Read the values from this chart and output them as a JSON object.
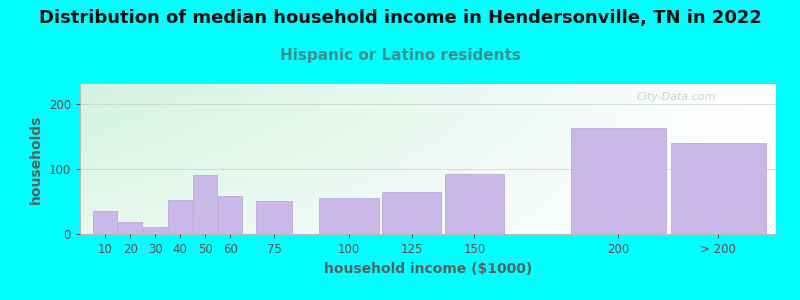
{
  "title": "Distribution of median household income in Hendersonville, TN in 2022",
  "subtitle": "Hispanic or Latino residents",
  "xlabel": "household income ($1000)",
  "ylabel": "households",
  "background_color": "#00FFFF",
  "bar_color": "#c9b8e8",
  "bar_edge_color": "#b8a0d8",
  "categories": [
    "10",
    "20",
    "30",
    "40",
    "50",
    "60",
    "75",
    "100",
    "125",
    "150",
    "200",
    "> 200"
  ],
  "values": [
    35,
    18,
    10,
    52,
    90,
    58,
    50,
    55,
    65,
    92,
    163,
    140
  ],
  "bar_positions": [
    10,
    20,
    30,
    40,
    50,
    60,
    75,
    100,
    125,
    150,
    200,
    240
  ],
  "bar_widths": [
    10,
    10,
    10,
    10,
    10,
    10,
    15,
    25,
    25,
    25,
    40,
    40
  ],
  "yticks": [
    0,
    100,
    200
  ],
  "ylim": [
    0,
    230
  ],
  "title_fontsize": 13,
  "subtitle_fontsize": 11,
  "axis_label_fontsize": 10,
  "tick_fontsize": 8.5,
  "title_color": "#111111",
  "subtitle_color": "#3a9090",
  "axis_label_color": "#5a6060",
  "tick_color": "#555555",
  "watermark": "City-Data.com",
  "xlim_left": 5,
  "xlim_right": 283
}
